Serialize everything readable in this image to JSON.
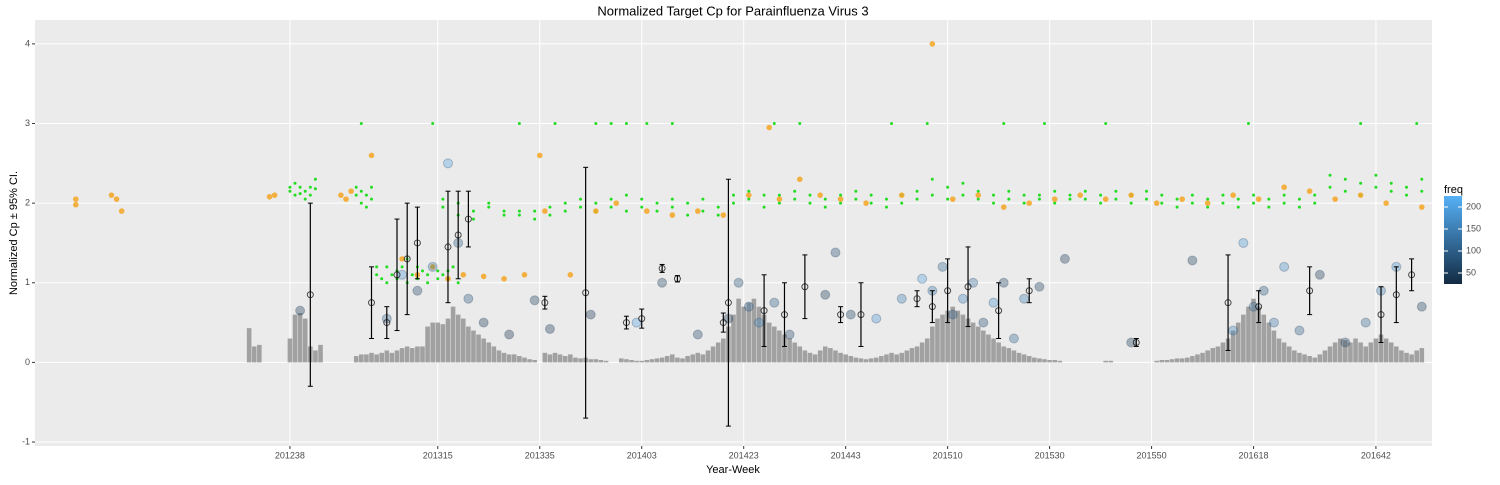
{
  "chart_data": {
    "type": "scatter",
    "title": "Normalized Target Cp for Parainfluenza Virus 3",
    "x_label": "Year-Week",
    "y_label": "Normalized Cp ± 95% CI.",
    "xlim": [
      -50,
      224
    ],
    "ylim": [
      -1.05,
      4.3
    ],
    "xticks": [
      {
        "value": 0,
        "label": "201238"
      },
      {
        "value": 29,
        "label": "201315"
      },
      {
        "value": 49,
        "label": "201335"
      },
      {
        "value": 69,
        "label": "201403"
      },
      {
        "value": 89,
        "label": "201423"
      },
      {
        "value": 109,
        "label": "201443"
      },
      {
        "value": 129,
        "label": "201510"
      },
      {
        "value": 149,
        "label": "201530"
      },
      {
        "value": 169,
        "label": "201550"
      },
      {
        "value": 189,
        "label": "201618"
      },
      {
        "value": 213,
        "label": "201642"
      }
    ],
    "yticks": [
      -1,
      0,
      1,
      2,
      3,
      4
    ],
    "grid": true,
    "layers": [
      {
        "type": "bar",
        "color": "#999999",
        "x": [
          -8,
          -7,
          -6,
          0,
          1,
          2,
          3,
          4,
          5,
          6,
          13,
          14,
          15,
          16,
          17,
          18,
          19,
          20,
          21,
          22,
          23,
          24,
          25,
          26,
          27,
          28,
          29,
          30,
          31,
          32,
          33,
          34,
          35,
          36,
          37,
          38,
          39,
          40,
          41,
          42,
          43,
          44,
          45,
          46,
          47,
          48,
          50,
          51,
          52,
          53,
          54,
          55,
          56,
          57,
          58,
          59,
          60,
          61,
          62,
          65,
          66,
          67,
          68,
          69,
          70,
          71,
          72,
          73,
          74,
          75,
          76,
          77,
          78,
          79,
          80,
          81,
          82,
          83,
          84,
          85,
          86,
          87,
          88,
          89,
          90,
          91,
          92,
          93,
          94,
          95,
          96,
          97,
          98,
          99,
          100,
          101,
          102,
          103,
          104,
          105,
          106,
          107,
          108,
          109,
          110,
          111,
          112,
          113,
          114,
          115,
          116,
          117,
          118,
          119,
          120,
          121,
          122,
          123,
          124,
          125,
          126,
          127,
          128,
          129,
          130,
          131,
          132,
          133,
          134,
          135,
          136,
          137,
          138,
          139,
          140,
          141,
          142,
          143,
          144,
          145,
          146,
          147,
          148,
          149,
          150,
          151,
          160,
          161,
          170,
          171,
          172,
          173,
          174,
          175,
          176,
          177,
          178,
          179,
          180,
          181,
          182,
          183,
          184,
          185,
          186,
          187,
          188,
          189,
          190,
          191,
          192,
          193,
          194,
          195,
          196,
          197,
          198,
          199,
          200,
          201,
          202,
          203,
          204,
          205,
          206,
          207,
          208,
          209,
          210,
          211,
          212,
          213,
          214,
          215,
          216,
          217,
          218,
          219,
          220,
          221,
          222
        ],
        "values": [
          0.43,
          0.2,
          0.22,
          0.3,
          0.6,
          0.62,
          0.55,
          0.2,
          0.15,
          0.22,
          0.08,
          0.1,
          0.1,
          0.12,
          0.1,
          0.12,
          0.15,
          0.12,
          0.15,
          0.18,
          0.2,
          0.18,
          0.2,
          0.2,
          0.45,
          0.5,
          0.5,
          0.48,
          0.55,
          0.7,
          0.6,
          0.55,
          0.45,
          0.4,
          0.35,
          0.3,
          0.25,
          0.2,
          0.15,
          0.12,
          0.1,
          0.1,
          0.08,
          0.06,
          0.04,
          0.03,
          0.12,
          0.1,
          0.12,
          0.1,
          0.08,
          0.1,
          0.06,
          0.05,
          0.06,
          0.04,
          0.04,
          0.03,
          0.02,
          0.05,
          0.04,
          0.03,
          0.02,
          0.02,
          0.03,
          0.04,
          0.05,
          0.06,
          0.08,
          0.1,
          0.06,
          0.05,
          0.08,
          0.1,
          0.12,
          0.1,
          0.15,
          0.2,
          0.25,
          0.3,
          0.45,
          0.6,
          0.8,
          0.7,
          0.75,
          0.8,
          0.7,
          0.6,
          0.5,
          0.45,
          0.4,
          0.35,
          0.3,
          0.25,
          0.2,
          0.15,
          0.12,
          0.1,
          0.15,
          0.2,
          0.18,
          0.15,
          0.12,
          0.1,
          0.08,
          0.06,
          0.05,
          0.04,
          0.05,
          0.06,
          0.08,
          0.1,
          0.12,
          0.1,
          0.12,
          0.15,
          0.18,
          0.2,
          0.25,
          0.3,
          0.45,
          0.55,
          0.6,
          0.65,
          0.7,
          0.65,
          0.6,
          0.55,
          0.5,
          0.45,
          0.4,
          0.35,
          0.3,
          0.25,
          0.2,
          0.18,
          0.15,
          0.12,
          0.1,
          0.08,
          0.06,
          0.05,
          0.04,
          0.03,
          0.03,
          0.02,
          0.02,
          0.02,
          0.02,
          0.03,
          0.03,
          0.04,
          0.05,
          0.05,
          0.06,
          0.08,
          0.1,
          0.12,
          0.15,
          0.18,
          0.2,
          0.25,
          0.3,
          0.4,
          0.5,
          0.6,
          0.7,
          0.8,
          0.7,
          0.6,
          0.5,
          0.4,
          0.3,
          0.25,
          0.2,
          0.15,
          0.12,
          0.1,
          0.08,
          0.06,
          0.1,
          0.15,
          0.2,
          0.25,
          0.3,
          0.28,
          0.25,
          0.3,
          0.25,
          0.2,
          0.25,
          0.3,
          0.35,
          0.3,
          0.25,
          0.2,
          0.15,
          0.12,
          0.1,
          0.15,
          0.18
        ]
      },
      {
        "type": "point",
        "color": "#22dd22",
        "x": [
          0,
          0,
          1,
          1,
          2,
          2,
          3,
          3,
          4,
          4,
          5,
          5,
          13,
          13,
          14,
          14,
          15,
          15,
          16,
          16,
          17,
          18,
          19,
          20,
          21,
          22,
          23,
          24,
          25,
          26,
          27,
          28,
          29,
          30,
          31,
          32,
          33,
          17,
          19,
          21,
          23,
          25,
          27,
          29,
          31,
          30,
          30,
          33,
          33,
          36,
          36,
          39,
          39,
          42,
          42,
          45,
          45,
          48,
          48,
          51,
          51,
          54,
          54,
          57,
          57,
          60,
          60,
          63,
          63,
          66,
          66,
          69,
          69,
          72,
          72,
          75,
          75,
          78,
          78,
          81,
          81,
          84,
          84,
          87,
          87,
          90,
          90,
          93,
          93,
          96,
          96,
          99,
          99,
          102,
          102,
          105,
          105,
          108,
          108,
          111,
          111,
          114,
          114,
          117,
          117,
          120,
          120,
          123,
          123,
          126,
          126,
          129,
          129,
          132,
          132,
          135,
          135,
          138,
          138,
          141,
          141,
          144,
          144,
          147,
          147,
          150,
          150,
          153,
          153,
          156,
          156,
          159,
          159,
          162,
          162,
          165,
          165,
          168,
          168,
          171,
          171,
          174,
          174,
          177,
          177,
          180,
          180,
          183,
          183,
          186,
          186,
          189,
          189,
          192,
          192,
          195,
          195,
          198,
          198,
          201,
          201,
          204,
          204,
          207,
          207,
          210,
          210,
          213,
          213,
          216,
          216,
          219,
          219,
          222,
          222,
          14,
          28,
          45,
          52,
          60,
          63,
          66,
          70,
          75,
          95,
          100,
          118,
          125,
          140,
          148,
          160,
          188,
          210,
          221
        ],
        "values": [
          2.15,
          2.2,
          2.1,
          2.25,
          2.2,
          2.12,
          2.15,
          2.05,
          2.1,
          2.2,
          2.18,
          2.3,
          2.1,
          2.2,
          2.0,
          2.15,
          1.95,
          2.1,
          2.05,
          2.2,
          1.2,
          1.05,
          1.2,
          1.1,
          1.15,
          1.2,
          1.3,
          1.1,
          1.2,
          1.15,
          1.1,
          1.2,
          1.05,
          1.1,
          1.15,
          1.2,
          1.0,
          1.1,
          1.0,
          1.05,
          1.0,
          1.05,
          1.0,
          1.15,
          1.05,
          1.95,
          2.05,
          2.0,
          1.85,
          1.9,
          1.8,
          1.95,
          2.0,
          1.9,
          1.85,
          1.85,
          1.9,
          1.9,
          1.8,
          1.85,
          1.95,
          1.9,
          2.0,
          1.95,
          2.05,
          2.0,
          1.9,
          2.05,
          1.95,
          2.1,
          1.9,
          1.95,
          2.05,
          2.0,
          1.9,
          1.95,
          2.05,
          2.0,
          1.85,
          1.9,
          2.05,
          1.95,
          1.85,
          2.1,
          2.0,
          2.05,
          2.15,
          2.1,
          1.95,
          2.0,
          2.1,
          2.05,
          2.15,
          2.0,
          2.1,
          2.05,
          1.95,
          2.1,
          2.0,
          2.05,
          2.15,
          2.0,
          2.1,
          2.05,
          1.95,
          2.1,
          2.0,
          2.15,
          2.05,
          2.1,
          2.3,
          2.05,
          2.2,
          2.1,
          2.25,
          2.05,
          2.15,
          2.1,
          2.0,
          2.05,
          2.15,
          2.0,
          2.1,
          2.1,
          2.05,
          2.15,
          2.0,
          2.1,
          2.05,
          2.05,
          2.15,
          2.1,
          2.0,
          2.05,
          2.15,
          2.1,
          2.0,
          2.05,
          2.15,
          2.0,
          2.1,
          2.05,
          1.95,
          2.1,
          2.0,
          2.05,
          1.95,
          2.0,
          2.1,
          2.05,
          1.95,
          2.1,
          2.0,
          2.05,
          1.95,
          2.0,
          2.1,
          2.05,
          1.95,
          2.1,
          2.0,
          2.2,
          2.35,
          2.15,
          2.3,
          2.25,
          2.1,
          2.2,
          2.35,
          2.15,
          2.25,
          2.2,
          2.1,
          2.15,
          2.3,
          3,
          3,
          3,
          3,
          3,
          3,
          3,
          3,
          3,
          3,
          3,
          3,
          3,
          3,
          3,
          3,
          3,
          3,
          3
        ]
      },
      {
        "type": "point",
        "color": "#f5a623",
        "x": [
          -42,
          -42,
          -35,
          -34,
          -33,
          -4,
          -3,
          10,
          11,
          12,
          16,
          22,
          25,
          28,
          31,
          34,
          38,
          42,
          46,
          49,
          50,
          55,
          60,
          64,
          70,
          75,
          80,
          85,
          90,
          94,
          96,
          100,
          104,
          108,
          113,
          120,
          126,
          130,
          135,
          140,
          145,
          150,
          155,
          160,
          165,
          170,
          175,
          180,
          185,
          190,
          195,
          200,
          205,
          210,
          215,
          222
        ],
        "values": [
          2.05,
          1.98,
          2.1,
          2.05,
          1.9,
          2.08,
          2.1,
          2.1,
          2.05,
          2.15,
          2.6,
          1.3,
          1.1,
          1.2,
          1.05,
          1.1,
          1.08,
          1.05,
          1.1,
          2.6,
          1.9,
          1.1,
          1.9,
          2.0,
          1.9,
          1.85,
          1.9,
          1.85,
          2.1,
          2.95,
          2.05,
          2.3,
          2.1,
          2.05,
          2.0,
          2.1,
          4.0,
          2.05,
          2.1,
          1.95,
          2.0,
          2.05,
          2.1,
          2.05,
          2.1,
          2.0,
          2.05,
          2.0,
          2.1,
          2.05,
          2.2,
          2.15,
          2.05,
          2.1,
          2.0,
          1.95
        ]
      },
      {
        "type": "bubble",
        "x": [
          2,
          19,
          22,
          25,
          28,
          31,
          33,
          35,
          38,
          43,
          48,
          51,
          59,
          68,
          73,
          80,
          86,
          88,
          90,
          92,
          95,
          98,
          105,
          107,
          110,
          115,
          120,
          124,
          126,
          128,
          130,
          132,
          134,
          136,
          138,
          140,
          142,
          144,
          147,
          152,
          165,
          177,
          185,
          187,
          189,
          191,
          193,
          195,
          198,
          202,
          207,
          211,
          214,
          217,
          222
        ],
        "values": [
          0.65,
          0.55,
          1.1,
          0.9,
          1.2,
          2.5,
          1.5,
          0.8,
          0.5,
          0.35,
          0.78,
          0.42,
          0.6,
          0.5,
          1.0,
          0.35,
          0.55,
          1.0,
          0.7,
          0.5,
          0.75,
          0.35,
          0.85,
          1.38,
          0.6,
          0.55,
          0.8,
          1.05,
          0.9,
          1.2,
          0.6,
          0.8,
          1.0,
          0.5,
          0.75,
          1.0,
          0.3,
          0.8,
          0.95,
          1.3,
          0.25,
          1.28,
          0.4,
          1.5,
          0.7,
          0.9,
          0.5,
          1.2,
          0.4,
          1.1,
          0.25,
          0.5,
          0.9,
          1.2,
          0.7
        ],
        "freq": [
          40,
          120,
          180,
          60,
          150,
          200,
          100,
          90,
          40,
          30,
          50,
          40,
          35,
          200,
          50,
          60,
          40,
          80,
          120,
          160,
          100,
          60,
          40,
          70,
          50,
          180,
          150,
          200,
          140,
          110,
          90,
          160,
          130,
          70,
          180,
          60,
          110,
          150,
          50,
          40,
          40,
          50,
          160,
          190,
          120,
          90,
          140,
          170,
          100,
          40,
          60,
          120,
          150,
          180,
          50
        ]
      },
      {
        "type": "errorbar",
        "color": "#000000",
        "x": [
          4,
          16,
          19,
          21,
          23,
          25,
          31,
          33,
          35,
          50,
          58,
          66,
          69,
          73,
          76,
          85,
          86,
          93,
          97,
          101,
          108,
          112,
          123,
          126,
          129,
          133,
          139,
          145,
          166,
          184,
          190,
          200,
          214,
          217,
          220
        ],
        "values": [
          0.85,
          0.75,
          0.5,
          1.1,
          1.3,
          1.5,
          1.45,
          1.6,
          1.8,
          0.75,
          0.875,
          0.5,
          0.55,
          1.18,
          1.05,
          0.5,
          0.75,
          0.65,
          0.6,
          0.95,
          0.6,
          0.6,
          0.8,
          0.7,
          0.9,
          0.95,
          0.65,
          0.9,
          0.25,
          0.75,
          0.7,
          0.9,
          0.6,
          0.85,
          1.1
        ],
        "errors": [
          1.15,
          0.45,
          0.2,
          0.7,
          0.7,
          0.45,
          0.7,
          0.55,
          0.35,
          0.08,
          1.575,
          0.08,
          0.12,
          0.05,
          0.04,
          0.12,
          1.55,
          0.45,
          0.4,
          0.4,
          0.1,
          0.4,
          0.1,
          0.2,
          0.4,
          0.5,
          0.35,
          0.15,
          0.05,
          0.6,
          0.2,
          0.3,
          0.35,
          0.35,
          0.2
        ]
      }
    ],
    "color_scale": {
      "title": "freq",
      "lim": [
        25,
        225
      ],
      "ticks": [
        50,
        100,
        150,
        200
      ],
      "colors": [
        "#132B43",
        "#56B1F7"
      ]
    }
  }
}
